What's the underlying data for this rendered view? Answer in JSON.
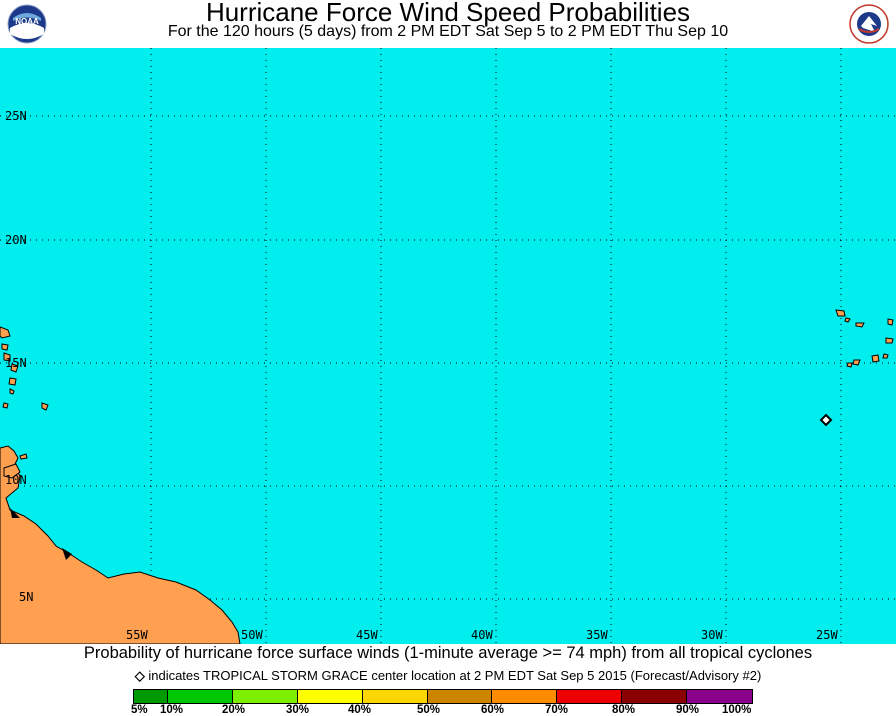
{
  "header": {
    "title": "Hurricane Force Wind Speed Probabilities",
    "subtitle": "For the 120 hours (5 days) from 2 PM EDT Sat Sep 5 to 2 PM EDT Thu Sep 10",
    "left_logo": "NOAA",
    "right_logo_text": "NATIONAL WEATHER SERVICE"
  },
  "map": {
    "ocean_color": "#00eeee",
    "land_color": "#ff9f50",
    "latitude_labels": [
      "25N",
      "20N",
      "15N",
      "10N",
      "5N"
    ],
    "longitude_labels": [
      "55W",
      "50W",
      "45W",
      "40W",
      "35W",
      "30W",
      "25W"
    ],
    "storm_marker": {
      "name": "TROPICAL STORM GRACE",
      "lat": 12.5,
      "lon": 25.2
    }
  },
  "footer": {
    "caption": "Probability of hurricane force surface winds (1-minute average >= 74 mph) from all tropical cyclones",
    "note": "indicates TROPICAL STORM GRACE center location at 2 PM EDT Sat Sep 5 2015 (Forecast/Advisory #2)",
    "note_symbol": "◇"
  },
  "legend": {
    "labels": [
      "5%",
      "10%",
      "20%",
      "30%",
      "40%",
      "50%",
      "60%",
      "70%",
      "80%",
      "90%",
      "100%"
    ],
    "colors": [
      "#009900",
      "#00c800",
      "#7cf000",
      "#ffff00",
      "#ffd700",
      "#cd8500",
      "#ff8c00",
      "#ee0000",
      "#8b0000",
      "#8b008b"
    ]
  }
}
